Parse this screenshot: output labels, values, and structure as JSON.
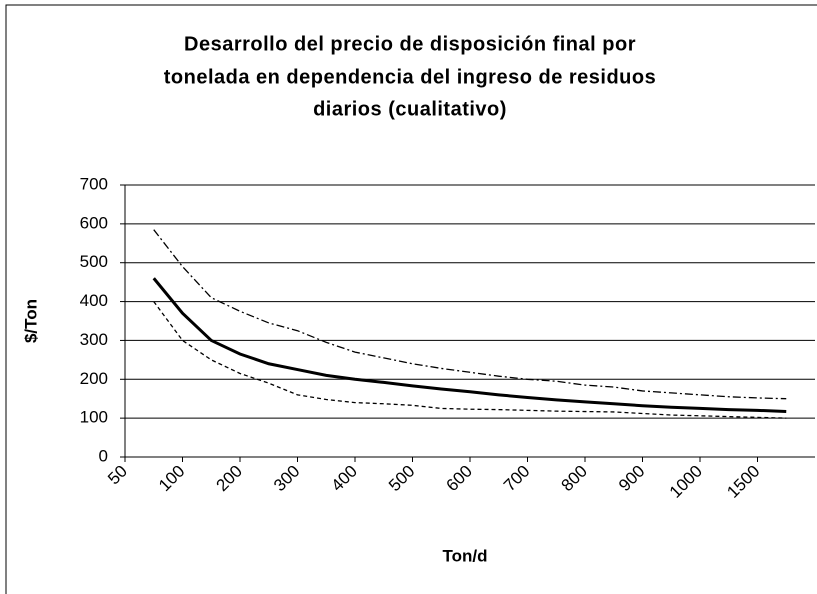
{
  "chart_data": {
    "type": "line",
    "title": [
      "Desarrollo del precio de disposición final por",
      "tonelada en dependencia del ingreso de residuos",
      "diarios  (cualitativo)"
    ],
    "x_label": "Ton/d",
    "y_label": "$/Ton",
    "categories": [
      "50",
      null,
      "100",
      null,
      "200",
      null,
      "300",
      null,
      "400",
      null,
      "500",
      null,
      "600",
      null,
      "700",
      null,
      "800",
      null,
      "900",
      null,
      "1000",
      null,
      "1500",
      null,
      null
    ],
    "series": [
      {
        "color": "#000000",
        "style": "solid",
        "values": [
          null,
          460,
          370,
          300,
          265,
          240,
          225,
          210,
          200,
          192,
          183,
          175,
          168,
          160,
          153,
          147,
          142,
          137,
          132,
          128,
          125,
          122,
          120,
          117,
          null
        ]
      },
      {
        "color": "#000000",
        "style": "dashdot",
        "values": [
          null,
          585,
          490,
          410,
          375,
          345,
          325,
          295,
          270,
          255,
          240,
          228,
          218,
          208,
          200,
          195,
          185,
          180,
          170,
          165,
          160,
          155,
          152,
          150,
          null
        ]
      },
      {
        "color": "#000000",
        "style": "dashed",
        "values": [
          null,
          400,
          300,
          250,
          215,
          190,
          160,
          148,
          140,
          137,
          133,
          125,
          123,
          122,
          120,
          118,
          117,
          116,
          112,
          108,
          106,
          104,
          102,
          100,
          null
        ]
      }
    ],
    "ylim": [
      0,
      700
    ],
    "yticks": [
      0,
      100,
      200,
      300,
      400,
      500,
      600,
      700
    ],
    "grid": true
  }
}
